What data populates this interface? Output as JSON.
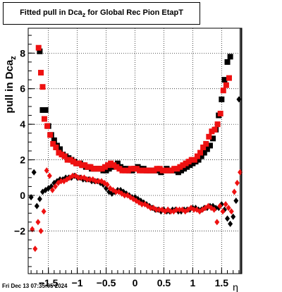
{
  "title": {
    "main": "Fitted pull in Dca",
    "sub": "z",
    "suffix": "for Global Rec Pion EtapT"
  },
  "footer": "Fri Dec 13 07:35:05 2024",
  "colors": {
    "black_series": "#000000",
    "red_series": "#ee1111",
    "grid": "#000000",
    "marker_lines": [
      "#000000",
      "#ee1111"
    ]
  },
  "chart_data": {
    "type": "scatter",
    "xlabel": "η",
    "ylabel": "pull in Dca",
    "ylabel_sub": "z",
    "xlim": [
      -1.85,
      1.85
    ],
    "ylim": [
      -4.4,
      9.4
    ],
    "x_ticks": [
      -1.5,
      -1,
      -0.5,
      0,
      0.5,
      1,
      1.5
    ],
    "x_tick_labels": [
      "−1.5",
      "−1",
      "−0.5",
      "0",
      "0.5",
      "1",
      "1.5"
    ],
    "y_ticks": [
      -2,
      0,
      2,
      4,
      6,
      8
    ],
    "y_tick_labels": [
      "−2",
      "0",
      "2",
      "4",
      "6",
      "8"
    ],
    "grid": true,
    "vertical_lines": [
      1.82,
      1.86,
      1.9
    ],
    "series": [
      {
        "marker": "square",
        "color": "#000000",
        "x": [
          -1.65,
          -1.6,
          -1.55,
          -1.5,
          -1.45,
          -1.4,
          -1.35,
          -1.3,
          -1.25,
          -1.2,
          -1.15,
          -1.1,
          -1.05,
          -1.0,
          -0.95,
          -0.9,
          -0.85,
          -0.8,
          -0.75,
          -0.7,
          -0.65,
          -0.6,
          -0.55,
          -0.5,
          -0.45,
          -0.4,
          -0.35,
          -0.3,
          -0.25,
          -0.2,
          -0.15,
          -0.1,
          -0.05,
          0.0,
          0.05,
          0.1,
          0.15,
          0.2,
          0.25,
          0.3,
          0.35,
          0.4,
          0.45,
          0.5,
          0.55,
          0.6,
          0.65,
          0.7,
          0.75,
          0.8,
          0.85,
          0.9,
          0.95,
          1.0,
          1.05,
          1.1,
          1.15,
          1.2,
          1.25,
          1.3,
          1.35,
          1.4,
          1.45,
          1.5,
          1.55,
          1.6,
          1.65
        ],
        "y": [
          8.1,
          4.8,
          4.8,
          3.9,
          3.4,
          3.1,
          2.8,
          2.6,
          2.3,
          2.2,
          2.1,
          2.0,
          1.9,
          1.8,
          1.8,
          1.7,
          1.6,
          1.6,
          1.5,
          1.5,
          1.5,
          1.5,
          1.4,
          1.4,
          1.5,
          1.6,
          1.7,
          1.8,
          1.6,
          1.5,
          1.5,
          1.4,
          1.4,
          1.5,
          1.6,
          1.5,
          1.5,
          1.4,
          1.4,
          1.4,
          1.4,
          1.4,
          1.3,
          1.4,
          1.5,
          1.4,
          1.4,
          1.4,
          1.3,
          1.4,
          1.5,
          1.6,
          1.7,
          1.8,
          1.9,
          2.0,
          2.2,
          2.4,
          2.6,
          2.8,
          3.2,
          3.7,
          4.5,
          5.4,
          6.5,
          7.5,
          7.8
        ]
      },
      {
        "marker": "square",
        "color": "#ee1111",
        "x": [
          -1.67,
          -1.63,
          -1.6,
          -1.57,
          -1.52,
          -1.47,
          -1.42,
          -1.37,
          -1.32,
          -1.27,
          -1.22,
          -1.17,
          -1.12,
          -1.07,
          -1.02,
          -0.97,
          -0.92,
          -0.87,
          -0.82,
          -0.77,
          -0.72,
          -0.67,
          -0.62,
          -0.57,
          -0.52,
          -0.47,
          -0.42,
          -0.37,
          -0.32,
          -0.27,
          -0.22,
          -0.17,
          -0.12,
          -0.07,
          -0.02,
          0.03,
          0.08,
          0.13,
          0.18,
          0.23,
          0.28,
          0.33,
          0.38,
          0.43,
          0.48,
          0.53,
          0.58,
          0.63,
          0.68,
          0.73,
          0.78,
          0.83,
          0.88,
          0.93,
          0.98,
          1.03,
          1.08,
          1.13,
          1.18,
          1.23,
          1.28,
          1.33,
          1.38,
          1.43,
          1.48,
          1.53,
          1.58,
          1.63
        ],
        "y": [
          8.3,
          6.9,
          6.1,
          4.3,
          3.9,
          3.4,
          2.9,
          2.7,
          2.4,
          2.3,
          2.2,
          2.0,
          2.0,
          1.9,
          1.8,
          1.8,
          1.7,
          1.7,
          1.6,
          1.6,
          1.5,
          1.5,
          1.5,
          1.5,
          1.6,
          1.7,
          1.8,
          1.7,
          1.6,
          1.5,
          1.4,
          1.4,
          1.4,
          1.5,
          1.5,
          1.5,
          1.4,
          1.4,
          1.4,
          1.4,
          1.4,
          1.4,
          1.5,
          1.5,
          1.4,
          1.4,
          1.4,
          1.4,
          1.5,
          1.5,
          1.6,
          1.7,
          1.8,
          1.9,
          2.0,
          2.0,
          2.2,
          2.4,
          2.7,
          2.9,
          3.3,
          3.6,
          3.7,
          4.0,
          4.6,
          5.9,
          6.2,
          6.6
        ]
      },
      {
        "marker": "diamond",
        "color": "#000000",
        "x": [
          -1.8,
          -1.75,
          -1.7,
          -1.65,
          -1.6,
          -1.55,
          -1.5,
          -1.45,
          -1.4,
          -1.35,
          -1.3,
          -1.25,
          -1.2,
          -1.15,
          -1.1,
          -1.05,
          -1.0,
          -0.95,
          -0.9,
          -0.85,
          -0.8,
          -0.75,
          -0.7,
          -0.65,
          -0.6,
          -0.55,
          -0.5,
          -0.45,
          -0.4,
          -0.35,
          -0.3,
          -0.25,
          -0.2,
          -0.15,
          -0.1,
          -0.05,
          0.0,
          0.05,
          0.1,
          0.15,
          0.2,
          0.25,
          0.3,
          0.35,
          0.4,
          0.45,
          0.5,
          0.55,
          0.6,
          0.65,
          0.7,
          0.75,
          0.8,
          0.85,
          0.9,
          0.95,
          1.0,
          1.05,
          1.1,
          1.15,
          1.2,
          1.25,
          1.3,
          1.35,
          1.4,
          1.45,
          1.5,
          1.55,
          1.6,
          1.65,
          1.7,
          1.75,
          1.8
        ],
        "y": [
          -0.1,
          1.3,
          -0.6,
          -0.2,
          0.2,
          0.3,
          0.4,
          0.5,
          0.7,
          0.8,
          0.9,
          0.9,
          1.0,
          1.0,
          1.0,
          1.1,
          1.0,
          1.0,
          0.9,
          0.9,
          0.9,
          0.8,
          0.8,
          0.8,
          0.7,
          0.6,
          0.4,
          0.2,
          0.1,
          0.2,
          0.3,
          0.3,
          0.2,
          0.1,
          0.0,
          -0.1,
          -0.1,
          -0.2,
          -0.3,
          -0.4,
          -0.5,
          -0.6,
          -0.7,
          -0.8,
          -0.8,
          -0.9,
          -0.8,
          -0.9,
          -0.9,
          -0.8,
          -0.8,
          -0.9,
          -0.9,
          -0.8,
          -0.8,
          -0.8,
          -0.7,
          -0.7,
          -0.8,
          -0.8,
          -0.7,
          -0.7,
          -0.6,
          -0.6,
          -0.7,
          -0.7,
          -0.5,
          -0.8,
          -1.3,
          -1.6,
          -1.2,
          -0.3,
          5.4
        ]
      },
      {
        "marker": "diamond",
        "color": "#ee1111",
        "x": [
          -1.78,
          -1.73,
          -1.68,
          -1.63,
          -1.58,
          -1.53,
          -1.48,
          -1.43,
          -1.38,
          -1.33,
          -1.28,
          -1.23,
          -1.18,
          -1.13,
          -1.08,
          -1.03,
          -0.98,
          -0.93,
          -0.88,
          -0.83,
          -0.78,
          -0.73,
          -0.68,
          -0.63,
          -0.58,
          -0.53,
          -0.48,
          -0.43,
          -0.38,
          -0.33,
          -0.28,
          -0.23,
          -0.18,
          -0.13,
          -0.08,
          -0.03,
          0.02,
          0.07,
          0.12,
          0.17,
          0.22,
          0.27,
          0.32,
          0.37,
          0.42,
          0.47,
          0.52,
          0.57,
          0.62,
          0.67,
          0.72,
          0.77,
          0.82,
          0.87,
          0.92,
          0.97,
          1.02,
          1.07,
          1.12,
          1.17,
          1.22,
          1.27,
          1.32,
          1.37,
          1.42,
          1.47,
          1.52,
          1.57,
          1.62,
          1.67,
          1.72,
          1.77,
          1.82
        ],
        "y": [
          -1.9,
          -3.0,
          -1.5,
          -2.0,
          -0.9,
          1.4,
          1.1,
          0.3,
          0.5,
          0.7,
          0.8,
          0.8,
          0.9,
          1.0,
          1.1,
          1.1,
          1.0,
          1.0,
          1.0,
          0.9,
          0.9,
          0.9,
          0.8,
          0.8,
          0.8,
          0.7,
          0.6,
          0.4,
          0.3,
          0.2,
          0.2,
          0.1,
          0.0,
          0.0,
          -0.1,
          -0.2,
          -0.3,
          -0.4,
          -0.5,
          -0.5,
          -0.6,
          -0.7,
          -0.7,
          -0.8,
          -0.8,
          -0.8,
          -0.9,
          -0.8,
          -0.9,
          -0.9,
          -0.8,
          -0.8,
          -0.8,
          -0.9,
          -0.8,
          -0.7,
          -0.8,
          -0.8,
          -0.9,
          -0.8,
          -0.7,
          -0.6,
          -0.7,
          -0.8,
          -1.5,
          -0.6,
          -0.9,
          -0.5,
          -0.7,
          -0.9,
          0.2,
          0.7,
          1.3
        ]
      }
    ]
  }
}
